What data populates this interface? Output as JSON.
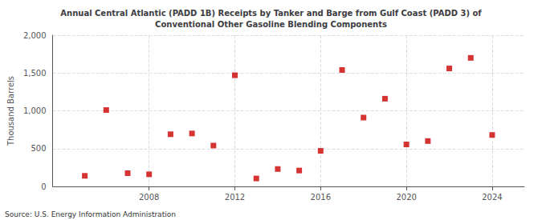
{
  "chart_data": {
    "type": "scatter",
    "title": "Annual Central Atlantic (PADD 1B) Receipts by Tanker and Barge from Gulf Coast (PADD 3) of\nConventional Other Gasoline Blending Components",
    "ylabel": "Thousand Barrels",
    "annotations": [
      "Source: U.S. Energy Information Administration"
    ],
    "x": [
      2005,
      2006,
      2007,
      2008,
      2009,
      2010,
      2011,
      2012,
      2013,
      2014,
      2015,
      2016,
      2017,
      2018,
      2019,
      2020,
      2021,
      2022,
      2023,
      2024
    ],
    "values": [
      140,
      1010,
      175,
      160,
      690,
      700,
      540,
      1470,
      105,
      230,
      210,
      470,
      1540,
      910,
      1160,
      555,
      600,
      1560,
      1700,
      680
    ],
    "color": "#cc0000",
    "marker": "square",
    "xlim": [
      2003.5,
      2025.5
    ],
    "xticks": [
      2008,
      2012,
      2016,
      2020,
      2024
    ],
    "ylim": [
      0,
      2000
    ],
    "yticks": [
      0,
      500,
      {
        "value": 1000,
        "label": "1,000"
      },
      {
        "value": 1500,
        "label": "1,500"
      },
      {
        "value": 2000,
        "label": "2,000"
      }
    ],
    "grid": true
  }
}
